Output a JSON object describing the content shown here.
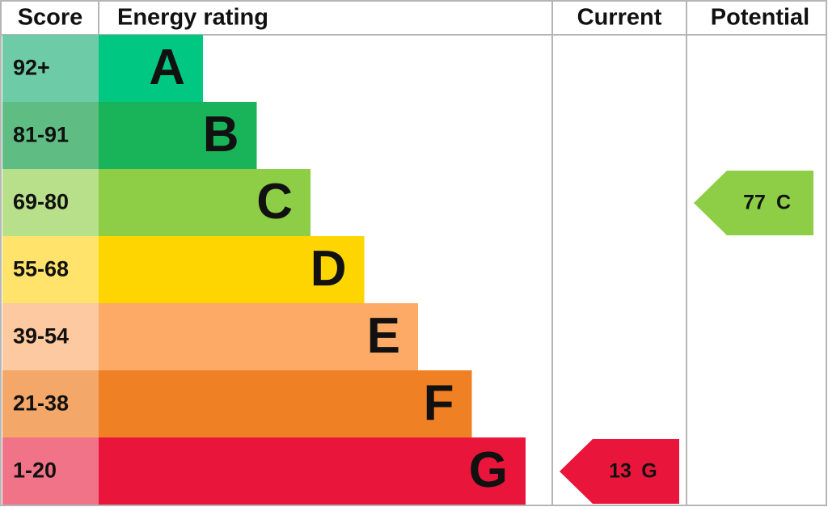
{
  "headers": {
    "score": "Score",
    "energy_rating": "Energy rating",
    "current": "Current",
    "potential": "Potential"
  },
  "bands": [
    {
      "score": "92+",
      "letter": "A",
      "color": "#00c781",
      "score_color": "#6dcba7"
    },
    {
      "score": "81-91",
      "letter": "B",
      "color": "#19b459",
      "score_color": "#5fbd83"
    },
    {
      "score": "69-80",
      "letter": "C",
      "color": "#8dce46",
      "score_color": "#b8e08a"
    },
    {
      "score": "55-68",
      "letter": "D",
      "color": "#ffd500",
      "score_color": "#ffe36a"
    },
    {
      "score": "39-54",
      "letter": "E",
      "color": "#fcaa65",
      "score_color": "#fdc9a0"
    },
    {
      "score": "21-38",
      "letter": "F",
      "color": "#ef8023",
      "score_color": "#f3a86a"
    },
    {
      "score": "1-20",
      "letter": "G",
      "color": "#e9153b",
      "score_color": "#f07388"
    }
  ],
  "current": {
    "value": 13,
    "letter": "G"
  },
  "potential": {
    "value": 77,
    "letter": "C"
  }
}
